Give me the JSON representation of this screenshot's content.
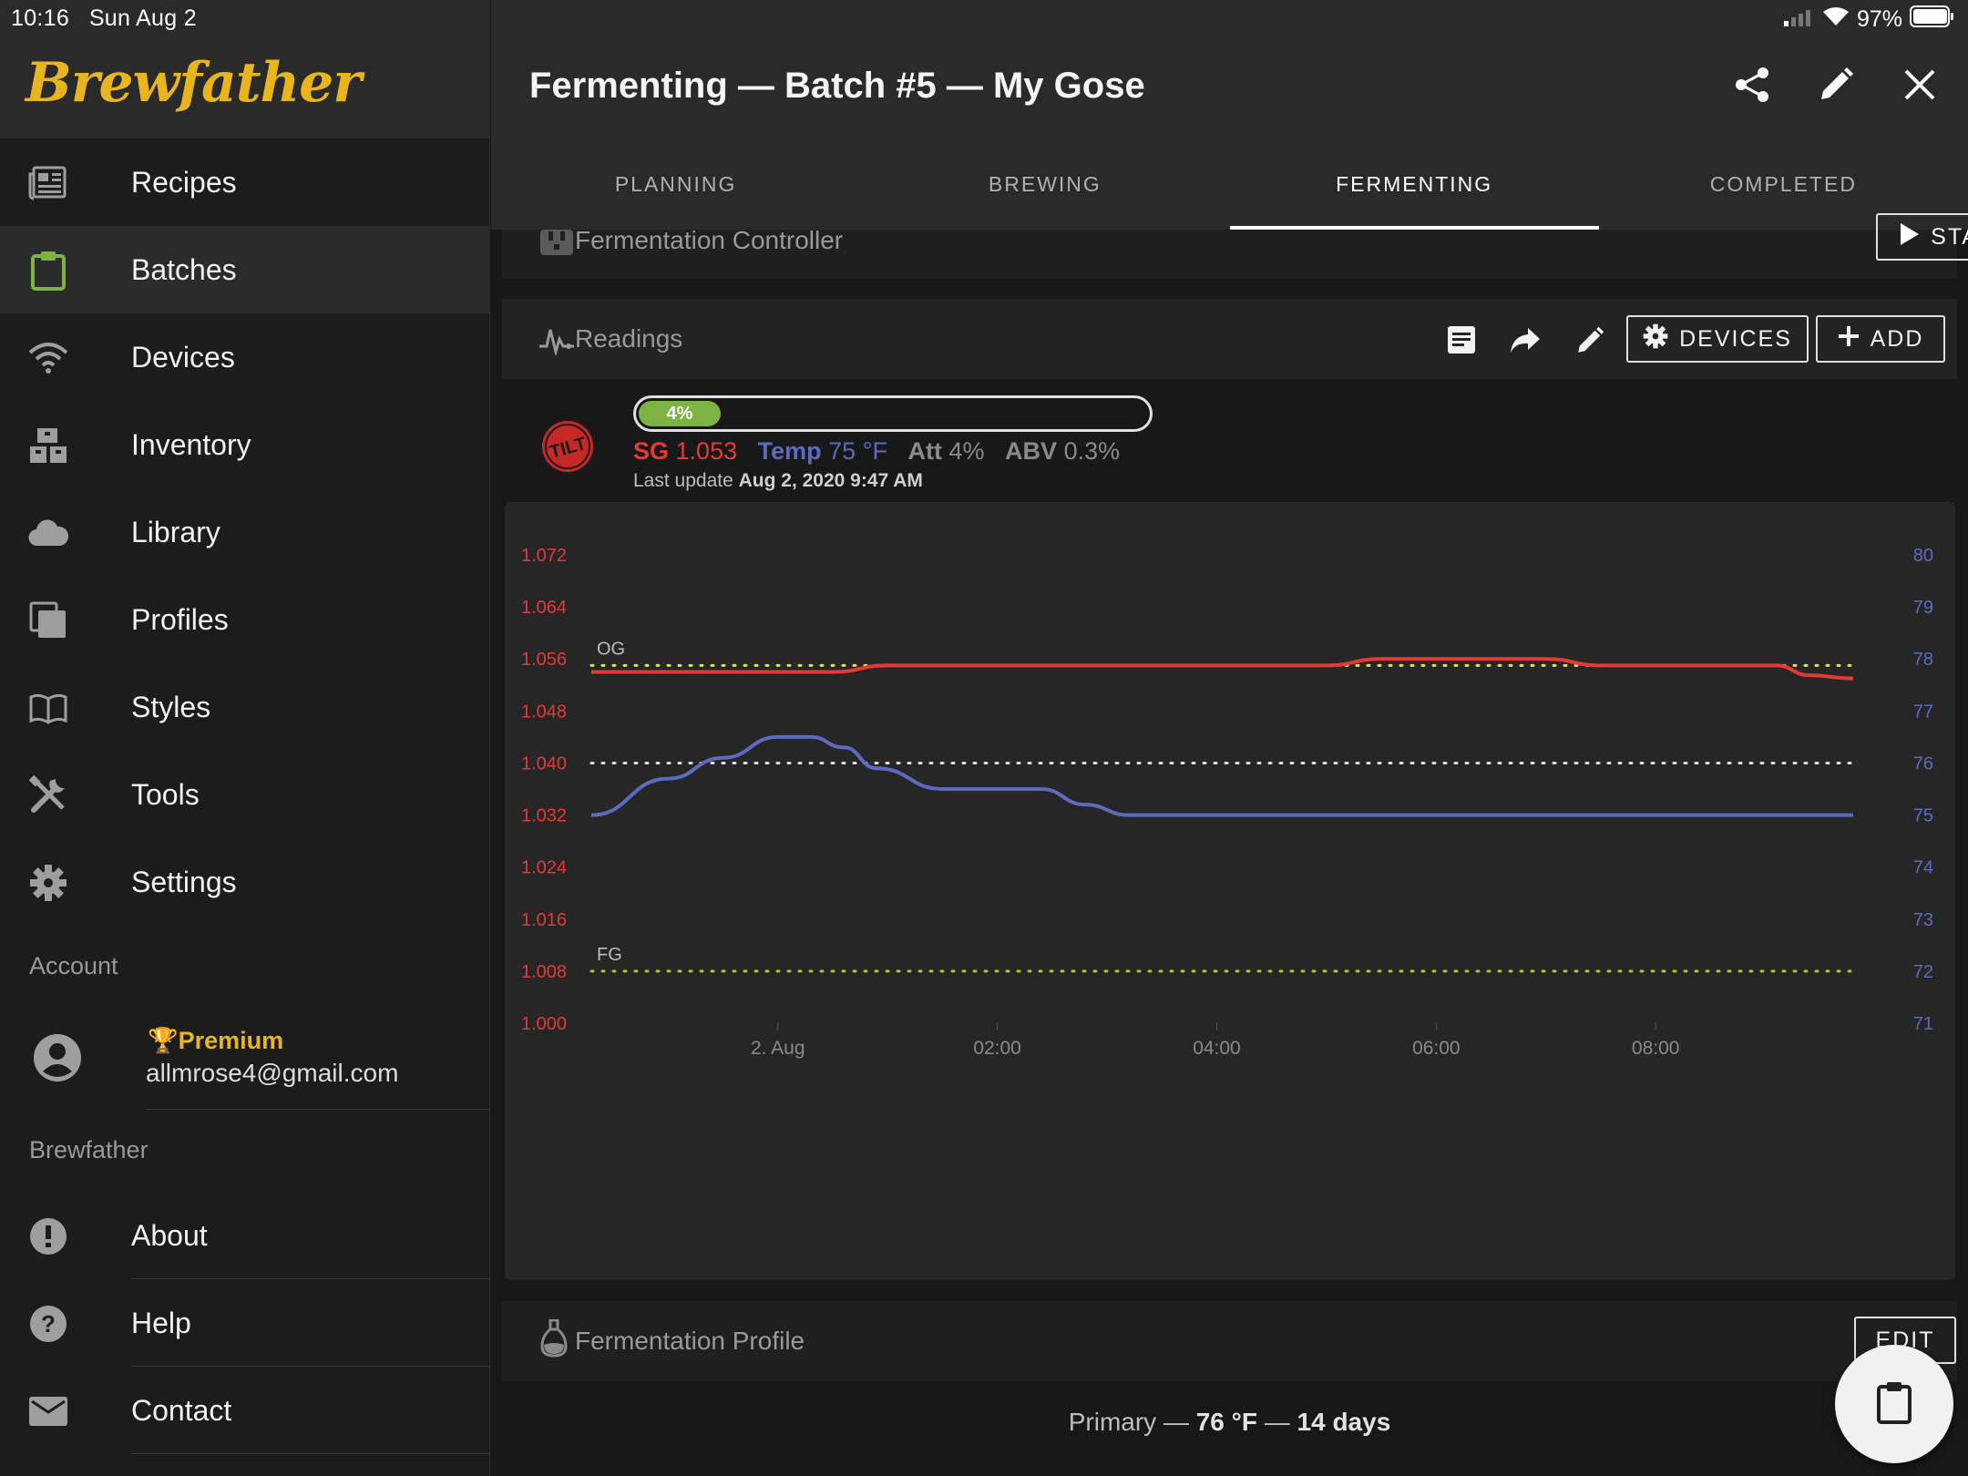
{
  "status": {
    "time": "10:16",
    "date": "Sun Aug 2",
    "battery": "97%"
  },
  "app": {
    "logo": "Brewfather"
  },
  "sidebar": {
    "items": [
      {
        "label": "Recipes",
        "icon": "newspaper-icon"
      },
      {
        "label": "Batches",
        "icon": "clipboard-icon",
        "active": true
      },
      {
        "label": "Devices",
        "icon": "wifi-icon"
      },
      {
        "label": "Inventory",
        "icon": "boxes-icon"
      },
      {
        "label": "Library",
        "icon": "cloud-icon"
      },
      {
        "label": "Profiles",
        "icon": "copy-icon"
      },
      {
        "label": "Styles",
        "icon": "book-icon"
      },
      {
        "label": "Tools",
        "icon": "tools-icon"
      },
      {
        "label": "Settings",
        "icon": "gear-icon"
      }
    ],
    "account_label": "Account",
    "account": {
      "tier": "Premium",
      "email": "allmrose4@gmail.com"
    },
    "brewfather_label": "Brewfather",
    "bottom_items": [
      {
        "label": "About",
        "icon": "info-icon"
      },
      {
        "label": "Help",
        "icon": "help-icon"
      },
      {
        "label": "Contact",
        "icon": "mail-icon"
      }
    ]
  },
  "header": {
    "title": "Fermenting — Batch #5 — My Gose"
  },
  "tabs": [
    {
      "label": "PLANNING"
    },
    {
      "label": "BREWING"
    },
    {
      "label": "FERMENTING",
      "active": true
    },
    {
      "label": "COMPLETED"
    }
  ],
  "controller": {
    "title": "Fermentation Controller",
    "start_label": "START"
  },
  "readings": {
    "title": "Readings",
    "devices_label": "DEVICES",
    "add_label": "ADD",
    "device_name": "TILT",
    "progress_label": "4%",
    "progress": 0.04,
    "sg_label": "SG",
    "sg_value": "1.053",
    "temp_label": "Temp",
    "temp_value": "75 °F",
    "att_label": "Att",
    "att_value": "4%",
    "abv_label": "ABV",
    "abv_value": "0.3%",
    "last_update_label": "Last update",
    "last_update_value": "Aug 2, 2020 9:47 AM"
  },
  "chart_data": {
    "type": "line",
    "x_ticks": [
      "2. Aug",
      "02:00",
      "04:00",
      "06:00",
      "08:00"
    ],
    "x_range_hours": [
      -1.7,
      9.8
    ],
    "left_axis": {
      "ticks": [
        "1.072",
        "1.064",
        "1.056",
        "1.048",
        "1.040",
        "1.032",
        "1.024",
        "1.016",
        "1.008",
        "1.000"
      ],
      "ylim": [
        1.0,
        1.072
      ],
      "color": "#e53935"
    },
    "right_axis": {
      "ticks": [
        "80",
        "79",
        "78",
        "77",
        "76",
        "75",
        "74",
        "73",
        "72",
        "71"
      ],
      "ylim": [
        71,
        80
      ],
      "color": "#5c6bc0"
    },
    "reference_lines": [
      {
        "label": "OG",
        "axis": "left",
        "value": 1.055,
        "color": "#e6e62e"
      },
      {
        "axis": "left",
        "value": 1.04,
        "color": "#e0e0e0"
      },
      {
        "label": "FG",
        "axis": "left",
        "value": 1.008,
        "color": "#9ccc3a"
      }
    ],
    "series": [
      {
        "axis": "left",
        "color": "#e53935",
        "x": [
          -1.7,
          -0.2,
          0.5,
          1.0,
          5.0,
          5.5,
          7.0,
          7.5,
          9.1,
          9.4,
          9.8
        ],
        "values": [
          1.054,
          1.054,
          1.054,
          1.055,
          1.055,
          1.056,
          1.056,
          1.055,
          1.055,
          1.0535,
          1.053
        ]
      },
      {
        "axis": "right",
        "color": "#5c6bc0",
        "x": [
          -1.7,
          -1.0,
          -0.5,
          0.0,
          0.3,
          0.6,
          0.9,
          1.5,
          2.0,
          2.4,
          2.8,
          3.2,
          5.0,
          7.0,
          9.8
        ],
        "values": [
          75,
          75.7,
          76.1,
          76.5,
          76.5,
          76.3,
          75.9,
          75.5,
          75.5,
          75.5,
          75.2,
          75,
          75,
          75,
          75
        ]
      }
    ]
  },
  "fermentation_profile": {
    "title": "Fermentation Profile",
    "edit_label": "EDIT",
    "step_name": "Primary",
    "separator": "—",
    "temp": "76 °F",
    "duration": "14 days"
  }
}
